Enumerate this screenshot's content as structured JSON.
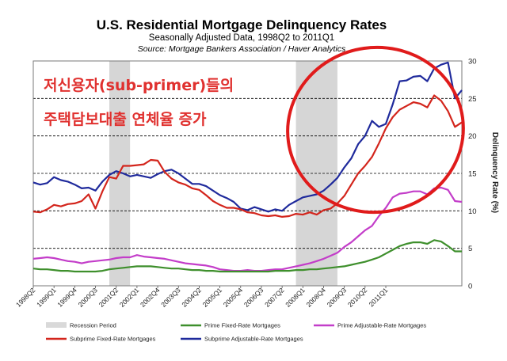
{
  "chart_data": {
    "type": "line",
    "title": "U.S. Residential Mortgage Delinquency Rates",
    "subtitle": "Seasonally Adjusted Data, 1998Q2 to 2011Q1",
    "source": "Source:  Mortgage Bankers Association / Haver Analytics",
    "ylabel": "Delinquency Rate (%)",
    "ylim": [
      0,
      30
    ],
    "y_ticks": [
      "0",
      "5",
      "10",
      "15",
      "20",
      "25",
      "30"
    ],
    "x_tick_labels": [
      "1998Q2",
      "1999Q1",
      "1999Q4",
      "2000Q3",
      "2001Q2",
      "2002Q1",
      "2002Q4",
      "2003Q3",
      "2004Q2",
      "2005Q1",
      "2005Q4",
      "2006Q3",
      "2007Q2",
      "2008Q1",
      "2008Q4",
      "2009Q3",
      "2010Q2",
      "2011Q1"
    ],
    "recession_periods": [
      {
        "start": "2001Q1",
        "end": "2001Q4"
      },
      {
        "start": "2007Q4",
        "end": "2009Q2"
      }
    ],
    "series": [
      {
        "name": "Subprime Adjustable-Rate Mortgages",
        "color": "#1f2a9c",
        "values": [
          13.8,
          13.5,
          13.7,
          14.5,
          14.1,
          13.9,
          13.5,
          13.0,
          13.1,
          12.7,
          13.9,
          14.8,
          15.3,
          15.0,
          14.6,
          14.8,
          14.6,
          14.4,
          14.9,
          15.3,
          15.5,
          15.0,
          14.3,
          13.6,
          13.6,
          13.3,
          12.7,
          12.1,
          11.7,
          11.2,
          10.3,
          10.1,
          10.5,
          10.2,
          9.9,
          10.2,
          10.0,
          10.8,
          11.3,
          11.8,
          12.0,
          12.2,
          12.7,
          13.5,
          14.4,
          15.8,
          17.0,
          18.9,
          20.0,
          22.0,
          21.2,
          21.6,
          24.2,
          27.3,
          27.4,
          27.9,
          28.0,
          27.3,
          29.0,
          29.5,
          29.8,
          25.0,
          26.1
        ]
      },
      {
        "name": "Subprime Fixed-Rate Mortgages",
        "color": "#d3251c",
        "values": [
          9.9,
          9.8,
          10.2,
          10.8,
          10.6,
          10.9,
          11.0,
          11.3,
          12.2,
          10.3,
          12.6,
          14.5,
          14.3,
          16.0,
          16.0,
          16.1,
          16.2,
          16.8,
          16.7,
          15.2,
          14.3,
          13.8,
          13.5,
          13.0,
          12.8,
          12.1,
          11.3,
          10.8,
          10.4,
          10.4,
          10.2,
          9.8,
          9.7,
          9.4,
          9.3,
          9.4,
          9.2,
          9.3,
          9.6,
          9.5,
          9.8,
          9.5,
          10.1,
          10.3,
          11.0,
          12.0,
          13.5,
          15.0,
          16.0,
          17.2,
          19.0,
          21.0,
          22.5,
          23.5,
          24.0,
          24.5,
          24.3,
          23.8,
          25.4,
          24.7,
          23.3,
          21.2,
          21.8
        ]
      },
      {
        "name": "Prime Adjustable-Rate Mortgages",
        "color": "#c33dc9",
        "values": [
          3.6,
          3.7,
          3.8,
          3.7,
          3.5,
          3.3,
          3.2,
          3.0,
          3.2,
          3.3,
          3.4,
          3.5,
          3.7,
          3.8,
          3.8,
          4.1,
          3.9,
          3.8,
          3.7,
          3.6,
          3.4,
          3.2,
          3.0,
          2.9,
          2.8,
          2.7,
          2.5,
          2.2,
          2.1,
          2.0,
          2.0,
          2.1,
          2.0,
          2.0,
          2.1,
          2.2,
          2.2,
          2.4,
          2.6,
          2.8,
          3.0,
          3.3,
          3.6,
          4.0,
          4.4,
          5.2,
          5.8,
          6.6,
          7.4,
          8.0,
          9.3,
          10.4,
          11.8,
          12.3,
          12.4,
          12.6,
          12.6,
          12.2,
          13.0,
          13.1,
          12.8,
          11.3,
          11.2
        ]
      },
      {
        "name": "Prime Fixed-Rate Mortgages",
        "color": "#3e8f2c",
        "values": [
          2.3,
          2.2,
          2.2,
          2.1,
          2.0,
          2.0,
          1.9,
          1.9,
          1.9,
          1.9,
          2.0,
          2.2,
          2.3,
          2.4,
          2.5,
          2.6,
          2.6,
          2.6,
          2.5,
          2.4,
          2.3,
          2.3,
          2.2,
          2.1,
          2.1,
          2.0,
          2.0,
          1.9,
          1.9,
          1.9,
          1.9,
          1.9,
          1.9,
          1.9,
          1.9,
          2.0,
          2.0,
          2.0,
          2.1,
          2.1,
          2.2,
          2.2,
          2.3,
          2.4,
          2.5,
          2.6,
          2.8,
          3.0,
          3.2,
          3.5,
          3.8,
          4.3,
          4.8,
          5.3,
          5.6,
          5.8,
          5.8,
          5.6,
          6.1,
          5.9,
          5.3,
          4.6,
          4.6
        ]
      }
    ],
    "legend": {
      "placement": "bottom",
      "entries": [
        {
          "label": "Recession Period",
          "color": "#d9d9d9",
          "kind": "box"
        },
        {
          "label": "Prime Fixed-Rate Mortgages",
          "color": "#3e8f2c",
          "kind": "line"
        },
        {
          "label": "Prime Adjustable-Rate Mortgages",
          "color": "#c33dc9",
          "kind": "line"
        },
        {
          "label": "Subprime Fixed-Rate Mortgages",
          "color": "#d3251c",
          "kind": "line"
        },
        {
          "label": "Subprime Adjustable-Rate Mortgages",
          "color": "#1f2a9c",
          "kind": "line"
        }
      ]
    },
    "annotation": {
      "line1": "저신용자(sub-primer)들의",
      "line2": "주택담보대출 연체율 증가",
      "color": "#e0312f"
    }
  }
}
